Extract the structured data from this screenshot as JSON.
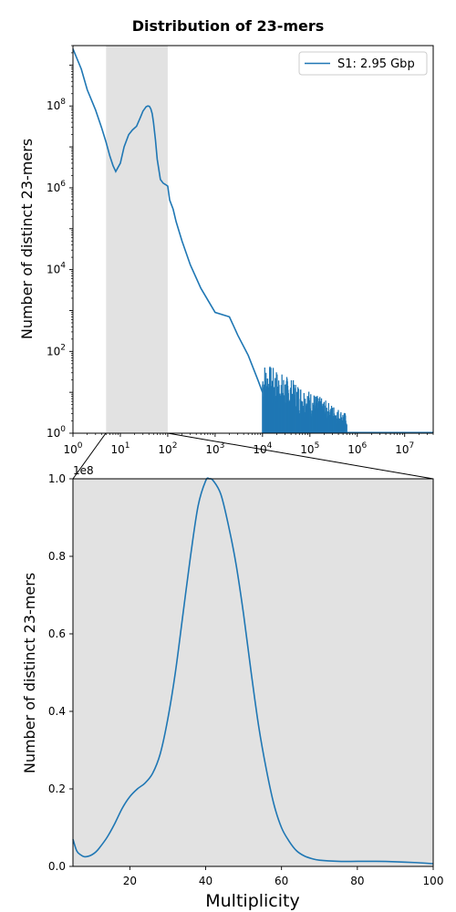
{
  "title": "Distribution of 23-mers",
  "colors": {
    "series": "#1f77b4",
    "highlight": "#e2e2e2",
    "axis": "#000000"
  },
  "chart_data": [
    {
      "type": "line",
      "panel": "top",
      "xscale": "log",
      "yscale": "log",
      "xlim": [
        1,
        40000000
      ],
      "ylim": [
        1,
        3000000000
      ],
      "xlabel": "",
      "ylabel": "Number of distinct 23-mers",
      "x_ticks": [
        1,
        10,
        100,
        1000,
        10000,
        100000,
        1000000,
        10000000
      ],
      "x_tick_labels": [
        {
          "base": "10",
          "exp": "0"
        },
        {
          "base": "10",
          "exp": "1"
        },
        {
          "base": "10",
          "exp": "2"
        },
        {
          "base": "10",
          "exp": "3"
        },
        {
          "base": "10",
          "exp": "4"
        },
        {
          "base": "10",
          "exp": "5"
        },
        {
          "base": "10",
          "exp": "6"
        },
        {
          "base": "10",
          "exp": "7"
        }
      ],
      "y_ticks": [
        1,
        100,
        10000,
        1000000,
        100000000
      ],
      "y_tick_labels": [
        {
          "base": "10",
          "exp": "0"
        },
        {
          "base": "10",
          "exp": "2"
        },
        {
          "base": "10",
          "exp": "4"
        },
        {
          "base": "10",
          "exp": "6"
        },
        {
          "base": "10",
          "exp": "8"
        }
      ],
      "highlight_range": [
        5,
        100
      ],
      "legend": {
        "label": "S1: 2.95 Gbp",
        "position": "top-right"
      },
      "series": [
        {
          "name": "S1: 2.95 Gbp",
          "x": [
            1,
            1.5,
            2,
            3,
            4,
            5,
            6,
            7,
            8,
            10,
            12,
            15,
            18,
            22,
            26,
            30,
            35,
            38,
            41,
            44,
            47,
            50,
            55,
            60,
            70,
            80,
            90,
            100,
            110,
            130,
            150,
            200,
            300,
            500,
            1000,
            2000,
            2500,
            3000,
            5000,
            8000,
            10000
          ],
          "y": [
            2500000000.0,
            800000000.0,
            250000000.0,
            80000000.0,
            30000000.0,
            13000000.0,
            6000000.0,
            3500000.0,
            2500000.0,
            4000000.0,
            10000000.0,
            20000000.0,
            26000000.0,
            32000000.0,
            50000000.0,
            75000000.0,
            96000000.0,
            100000000.0,
            98000000.0,
            85000000.0,
            65000000.0,
            40000000.0,
            15000000.0,
            5000000.0,
            1600000.0,
            1300000.0,
            1200000.0,
            1100000.0,
            500000.0,
            300000.0,
            150000.0,
            50000.0,
            13000.0,
            3500,
            900,
            700,
            400,
            250,
            80,
            20,
            10
          ]
        }
      ],
      "noise_band": {
        "x_start": 10000,
        "x_end": 600000,
        "y_min": 1,
        "y_start_max": 60,
        "y_end_max": 3
      }
    },
    {
      "type": "line",
      "panel": "bottom",
      "xscale": "linear",
      "yscale": "linear",
      "xlim": [
        5,
        100
      ],
      "ylim": [
        0,
        1.0
      ],
      "y_multiplier_label": "1e8",
      "xlabel": "Multiplicity",
      "ylabel": "Number of distinct 23-mers",
      "x_ticks": [
        20,
        40,
        60,
        80,
        100
      ],
      "x_tick_labels": [
        "20",
        "40",
        "60",
        "80",
        "100"
      ],
      "y_ticks": [
        0,
        0.2,
        0.4,
        0.6,
        0.8,
        1.0
      ],
      "y_tick_labels": [
        "0.0",
        "0.2",
        "0.4",
        "0.6",
        "0.8",
        "1.0"
      ],
      "background": "highlight",
      "series": [
        {
          "name": "",
          "x": [
            5,
            6,
            7,
            8,
            9,
            10,
            11,
            12,
            14,
            16,
            18,
            20,
            22,
            24,
            26,
            28,
            30,
            32,
            34,
            36,
            38,
            40,
            41,
            42,
            44,
            46,
            48,
            50,
            52,
            54,
            56,
            58,
            60,
            62,
            64,
            66,
            68,
            70,
            75,
            80,
            85,
            90,
            95,
            100
          ],
          "y": [
            0.07,
            0.04,
            0.03,
            0.025,
            0.026,
            0.03,
            0.037,
            0.048,
            0.075,
            0.11,
            0.15,
            0.18,
            0.2,
            0.215,
            0.24,
            0.29,
            0.38,
            0.5,
            0.65,
            0.8,
            0.93,
            0.995,
            1.0,
            0.995,
            0.96,
            0.88,
            0.78,
            0.65,
            0.5,
            0.36,
            0.25,
            0.16,
            0.1,
            0.065,
            0.04,
            0.027,
            0.02,
            0.016,
            0.013,
            0.013,
            0.013,
            0.012,
            0.01,
            0.007
          ]
        }
      ]
    }
  ]
}
